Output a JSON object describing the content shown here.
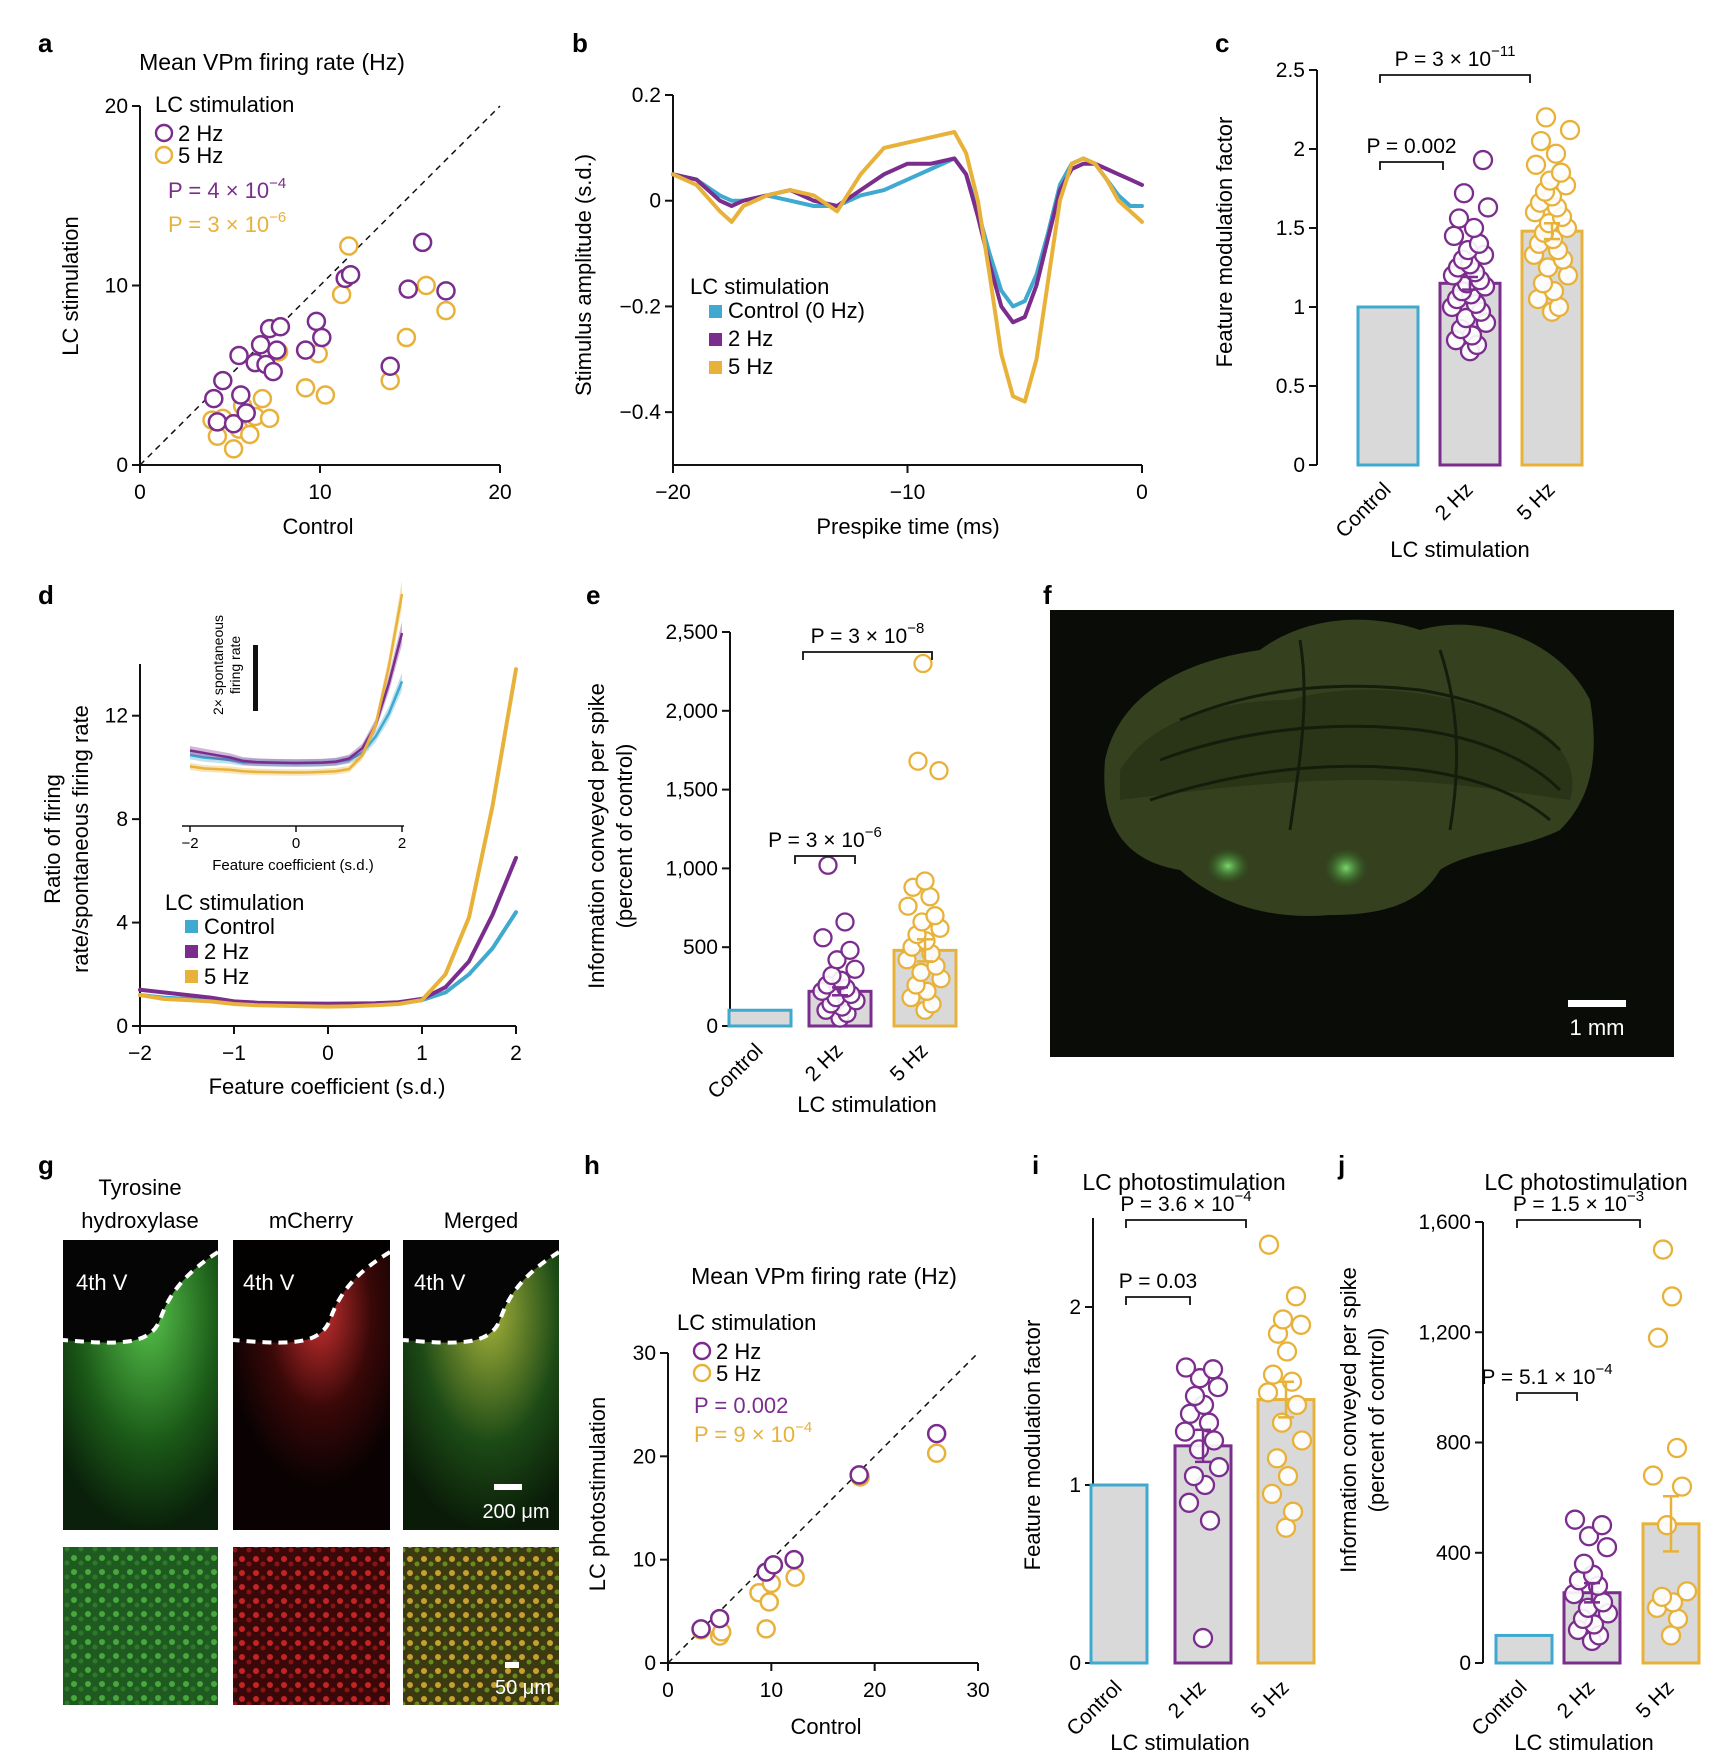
{
  "colors": {
    "control": "#3fa9d0",
    "hz2": "#7b2d8e",
    "hz5": "#e8b23a",
    "bar_fill": "#d9d9d9"
  },
  "panels": {
    "a": {
      "letter": "a",
      "title": "Mean VPm firing rate (Hz)",
      "xlabel": "Control",
      "ylabel": "LC stimulation",
      "legend_title": "LC stimulation",
      "leg_2": "2 Hz",
      "leg_5": "5 Hz",
      "p2": "P = 4 × 10",
      "p2_exp": "−4",
      "p5": "P = 3 × 10",
      "p5_exp": "−6"
    },
    "b": {
      "letter": "b",
      "xlabel": "Prespike time (ms)",
      "ylabel": "Stimulus amplitude (s.d.)",
      "legend_title": "LC stimulation",
      "leg_c": "Control (0 Hz)",
      "leg_2": "2 Hz",
      "leg_5": "5 Hz"
    },
    "c": {
      "letter": "c",
      "ylabel": "Feature modulation factor",
      "xlabel": "LC stimulation",
      "p_a": "P = 0.002",
      "p_b": "P = 3 × 10",
      "p_b_exp": "−11"
    },
    "d": {
      "letter": "d",
      "xlabel": "Feature coefficient (s.d.)",
      "ylabel1": "Ratio of firing",
      "ylabel2": "rate/spontaneous firing rate",
      "legend_title": "LC stimulation",
      "leg_c": "Control",
      "leg_2": "2 Hz",
      "leg_5": "5 Hz",
      "inset_xlabel": "Feature coefficient (s.d.)",
      "inset_scale1": "2× spontaneous",
      "inset_scale2": "firing rate"
    },
    "e": {
      "letter": "e",
      "ylabel1": "Information conveyed per spike",
      "ylabel2": "(percent of control)",
      "xlabel": "LC stimulation",
      "p_a": "P = 3 × 10",
      "p_a_exp": "−6",
      "p_b": "P = 3 × 10",
      "p_b_exp": "−8"
    },
    "f": {
      "letter": "f",
      "scale": "1 mm"
    },
    "g": {
      "letter": "g",
      "col1a": "Tyrosine",
      "col1b": "hydroxylase",
      "col2": "mCherry",
      "col3": "Merged",
      "region": "4th V",
      "scale_top": "200 μm",
      "scale_bottom": "50 μm"
    },
    "h": {
      "letter": "h",
      "title": "Mean VPm firing rate (Hz)",
      "xlabel": "Control",
      "ylabel": "LC photostimulation",
      "legend_title": "LC stimulation",
      "leg_2": "2 Hz",
      "leg_5": "5 Hz",
      "p2": "P = 0.002",
      "p5": "P = 9 × 10",
      "p5_exp": "−4"
    },
    "i": {
      "letter": "i",
      "title": "LC photostimulation",
      "ylabel": "Feature modulation factor",
      "xlabel": "LC stimulation",
      "p_a": "P = 0.03",
      "p_b": "P = 3.6 × 10",
      "p_b_exp": "−4"
    },
    "j": {
      "letter": "j",
      "title": "LC photostimulation",
      "ylabel1": "Information conveyed per spike",
      "ylabel2": "(percent of control)",
      "xlabel": "LC stimulation",
      "p_a": "P = 5.1 × 10",
      "p_a_exp": "−4",
      "p_b": "P = 1.5 × 10",
      "p_b_exp": "−3"
    }
  },
  "chart_data": [
    {
      "panel": "a",
      "type": "scatter",
      "xlim": [
        0,
        20
      ],
      "ylim": [
        0,
        20
      ],
      "xticks": [
        0,
        10,
        20
      ],
      "yticks": [
        0,
        10,
        20
      ],
      "series": [
        {
          "name": "2 Hz",
          "points": [
            [
              4.1,
              3.7
            ],
            [
              4.3,
              2.4
            ],
            [
              4.6,
              4.7
            ],
            [
              5.2,
              2.3
            ],
            [
              5.5,
              6.1
            ],
            [
              5.6,
              3.9
            ],
            [
              5.9,
              2.9
            ],
            [
              6.4,
              5.7
            ],
            [
              6.7,
              6.7
            ],
            [
              7.0,
              5.6
            ],
            [
              7.2,
              7.6
            ],
            [
              7.4,
              5.2
            ],
            [
              7.6,
              6.4
            ],
            [
              7.8,
              7.7
            ],
            [
              9.2,
              6.4
            ],
            [
              9.8,
              8.0
            ],
            [
              10.1,
              7.1
            ],
            [
              11.4,
              10.4
            ],
            [
              11.7,
              10.6
            ],
            [
              13.9,
              5.5
            ],
            [
              14.9,
              9.8
            ],
            [
              15.7,
              12.4
            ],
            [
              17.0,
              9.7
            ]
          ]
        },
        {
          "name": "5 Hz",
          "points": [
            [
              4.0,
              2.5
            ],
            [
              4.3,
              1.6
            ],
            [
              4.6,
              2.6
            ],
            [
              5.2,
              0.9
            ],
            [
              5.5,
              2.0
            ],
            [
              5.7,
              3.3
            ],
            [
              6.1,
              1.7
            ],
            [
              6.4,
              2.7
            ],
            [
              6.8,
              3.7
            ],
            [
              7.2,
              2.6
            ],
            [
              7.7,
              6.3
            ],
            [
              9.2,
              4.3
            ],
            [
              9.9,
              6.2
            ],
            [
              10.3,
              3.9
            ],
            [
              11.2,
              9.5
            ],
            [
              11.6,
              12.2
            ],
            [
              13.9,
              4.7
            ],
            [
              14.8,
              7.1
            ],
            [
              15.9,
              10.0
            ],
            [
              17.0,
              8.6
            ]
          ]
        }
      ]
    },
    {
      "panel": "b",
      "type": "line",
      "xlim": [
        -20,
        0
      ],
      "ylim": [
        -0.5,
        0.2
      ],
      "xticks": [
        -20,
        -10,
        0
      ],
      "yticks": [
        -0.4,
        -0.2,
        0,
        0.2
      ],
      "x": [
        -20,
        -19,
        -18,
        -17.5,
        -17,
        -16,
        -15,
        -14,
        -13,
        -12,
        -11,
        -10,
        -9,
        -8,
        -7.5,
        -7,
        -6.5,
        -6,
        -5.5,
        -5,
        -4.5,
        -4,
        -3.5,
        -3,
        -2.5,
        -2,
        -1.5,
        -1,
        -0.5,
        0
      ],
      "series": [
        {
          "name": "Control (0 Hz)",
          "values": [
            0.05,
            0.04,
            0.01,
            0.0,
            0.0,
            0.01,
            0.0,
            -0.01,
            -0.01,
            0.01,
            0.02,
            0.04,
            0.06,
            0.08,
            0.05,
            -0.02,
            -0.1,
            -0.17,
            -0.2,
            -0.19,
            -0.14,
            -0.06,
            0.03,
            0.07,
            0.08,
            0.07,
            0.04,
            0.01,
            -0.01,
            -0.01
          ]
        },
        {
          "name": "2 Hz",
          "values": [
            0.05,
            0.04,
            0.0,
            -0.01,
            0.0,
            0.01,
            0.02,
            0.0,
            -0.01,
            0.02,
            0.05,
            0.07,
            0.07,
            0.08,
            0.05,
            -0.03,
            -0.12,
            -0.2,
            -0.23,
            -0.22,
            -0.16,
            -0.07,
            0.02,
            0.06,
            0.07,
            0.07,
            0.06,
            0.05,
            0.04,
            0.03
          ]
        },
        {
          "name": "5 Hz",
          "values": [
            0.05,
            0.03,
            -0.02,
            -0.04,
            -0.01,
            0.01,
            0.02,
            0.01,
            -0.02,
            0.05,
            0.1,
            0.11,
            0.12,
            0.13,
            0.09,
            0.0,
            -0.14,
            -0.29,
            -0.37,
            -0.38,
            -0.3,
            -0.15,
            0.0,
            0.07,
            0.08,
            0.07,
            0.04,
            0.0,
            -0.02,
            -0.04
          ]
        }
      ]
    },
    {
      "panel": "c",
      "type": "bar",
      "ylim": [
        0,
        2.5
      ],
      "yticks": [
        0,
        0.5,
        1.0,
        1.5,
        2.0,
        2.5
      ],
      "categories": [
        "Control",
        "2 Hz",
        "5 Hz"
      ],
      "values": [
        1.0,
        1.15,
        1.48
      ],
      "errors": [
        0,
        0.04,
        0.05
      ],
      "points": [
        [],
        [
          0.72,
          0.76,
          0.79,
          0.82,
          0.86,
          0.9,
          0.93,
          0.97,
          1.0,
          1.02,
          1.05,
          1.08,
          1.1,
          1.13,
          1.15,
          1.17,
          1.2,
          1.22,
          1.25,
          1.27,
          1.3,
          1.33,
          1.36,
          1.4,
          1.45,
          1.5,
          1.56,
          1.63,
          1.72,
          1.93
        ],
        [
          0.97,
          1.0,
          1.05,
          1.1,
          1.15,
          1.2,
          1.25,
          1.3,
          1.33,
          1.36,
          1.4,
          1.43,
          1.47,
          1.5,
          1.53,
          1.57,
          1.6,
          1.63,
          1.66,
          1.7,
          1.73,
          1.77,
          1.8,
          1.85,
          1.9,
          1.97,
          2.05,
          2.12,
          2.2
        ]
      ]
    },
    {
      "panel": "d",
      "type": "line",
      "xlim": [
        -2,
        2
      ],
      "ylim": [
        0,
        14
      ],
      "xticks": [
        -2,
        -1,
        0,
        1,
        2
      ],
      "yticks": [
        0,
        4,
        8,
        12
      ],
      "x": [
        -2,
        -1.75,
        -1.5,
        -1.25,
        -1,
        -0.75,
        -0.5,
        -0.25,
        0,
        0.25,
        0.5,
        0.75,
        1,
        1.25,
        1.5,
        1.75,
        2
      ],
      "series": [
        {
          "name": "Control",
          "values": [
            1.2,
            1.1,
            1.05,
            1.0,
            0.9,
            0.88,
            0.87,
            0.86,
            0.86,
            0.86,
            0.87,
            0.9,
            1.0,
            1.3,
            2.0,
            3.0,
            4.4
          ]
        },
        {
          "name": "2 Hz",
          "values": [
            1.4,
            1.3,
            1.2,
            1.1,
            0.95,
            0.9,
            0.88,
            0.87,
            0.86,
            0.87,
            0.88,
            0.92,
            1.05,
            1.5,
            2.5,
            4.3,
            6.5
          ]
        },
        {
          "name": "5 Hz",
          "values": [
            1.2,
            1.05,
            1.0,
            0.95,
            0.85,
            0.8,
            0.78,
            0.76,
            0.75,
            0.76,
            0.8,
            0.85,
            1.0,
            2.0,
            4.2,
            8.5,
            13.8
          ]
        }
      ]
    },
    {
      "panel": "e",
      "type": "bar",
      "ylim": [
        0,
        2500
      ],
      "yticks": [
        0,
        500,
        1000,
        1500,
        2000,
        2500
      ],
      "yticklabels": [
        "0",
        "500",
        "1,000",
        "1,500",
        "2,000",
        "2,500"
      ],
      "categories": [
        "Control",
        "2 Hz",
        "5 Hz"
      ],
      "values": [
        100,
        220,
        480
      ],
      "errors": [
        0,
        25,
        70
      ],
      "points": [
        [],
        [
          50,
          80,
          100,
          120,
          140,
          160,
          180,
          200,
          220,
          240,
          260,
          290,
          320,
          360,
          420,
          480,
          560,
          660,
          1020
        ],
        [
          100,
          140,
          180,
          220,
          260,
          300,
          340,
          380,
          420,
          460,
          500,
          540,
          580,
          620,
          660,
          700,
          760,
          820,
          880,
          920,
          1680,
          1620,
          2300
        ]
      ]
    },
    {
      "panel": "h",
      "type": "scatter",
      "xlim": [
        0,
        30
      ],
      "ylim": [
        0,
        30
      ],
      "xticks": [
        0,
        10,
        20,
        30
      ],
      "yticks": [
        0,
        10,
        20,
        30
      ],
      "series": [
        {
          "name": "2 Hz",
          "points": [
            [
              3.2,
              3.3
            ],
            [
              5.0,
              4.3
            ],
            [
              9.5,
              8.8
            ],
            [
              10.2,
              9.5
            ],
            [
              12.2,
              10.0
            ],
            [
              18.5,
              18.2
            ],
            [
              26.0,
              22.2
            ]
          ]
        },
        {
          "name": "5 Hz",
          "points": [
            [
              3.2,
              3.2
            ],
            [
              5.0,
              2.6
            ],
            [
              5.2,
              3.0
            ],
            [
              8.8,
              6.8
            ],
            [
              9.5,
              3.3
            ],
            [
              9.8,
              5.9
            ],
            [
              10.0,
              7.7
            ],
            [
              12.3,
              8.3
            ],
            [
              18.6,
              18.0
            ],
            [
              26.0,
              20.3
            ]
          ]
        }
      ]
    },
    {
      "panel": "i",
      "type": "bar",
      "ylim": [
        0,
        2.5
      ],
      "yticks": [
        0,
        1,
        2
      ],
      "categories": [
        "Control",
        "2 Hz",
        "5 Hz"
      ],
      "values": [
        1.0,
        1.22,
        1.48
      ],
      "errors": [
        0,
        0.09,
        0.1
      ],
      "points": [
        [],
        [
          0.14,
          0.8,
          0.9,
          1.0,
          1.05,
          1.1,
          1.2,
          1.25,
          1.3,
          1.35,
          1.4,
          1.45,
          1.5,
          1.55,
          1.6,
          1.65,
          1.66
        ],
        [
          0.76,
          0.85,
          0.95,
          1.05,
          1.15,
          1.25,
          1.35,
          1.45,
          1.52,
          1.58,
          1.62,
          1.75,
          1.85,
          1.9,
          1.93,
          2.06,
          2.35
        ]
      ]
    },
    {
      "panel": "j",
      "type": "bar",
      "ylim": [
        0,
        1600
      ],
      "yticks": [
        0,
        400,
        800,
        1200,
        1600
      ],
      "yticklabels": [
        "0",
        "400",
        "800",
        "1,200",
        "1,600"
      ],
      "categories": [
        "Control",
        "2 Hz",
        "5 Hz"
      ],
      "values": [
        100,
        255,
        505
      ],
      "errors": [
        0,
        35,
        100
      ],
      "points": [
        [],
        [
          80,
          100,
          120,
          140,
          160,
          180,
          200,
          220,
          250,
          280,
          300,
          320,
          360,
          420,
          460,
          500,
          520
        ],
        [
          100,
          160,
          200,
          220,
          240,
          260,
          500,
          640,
          680,
          780,
          1180,
          1330,
          1500
        ]
      ]
    }
  ]
}
